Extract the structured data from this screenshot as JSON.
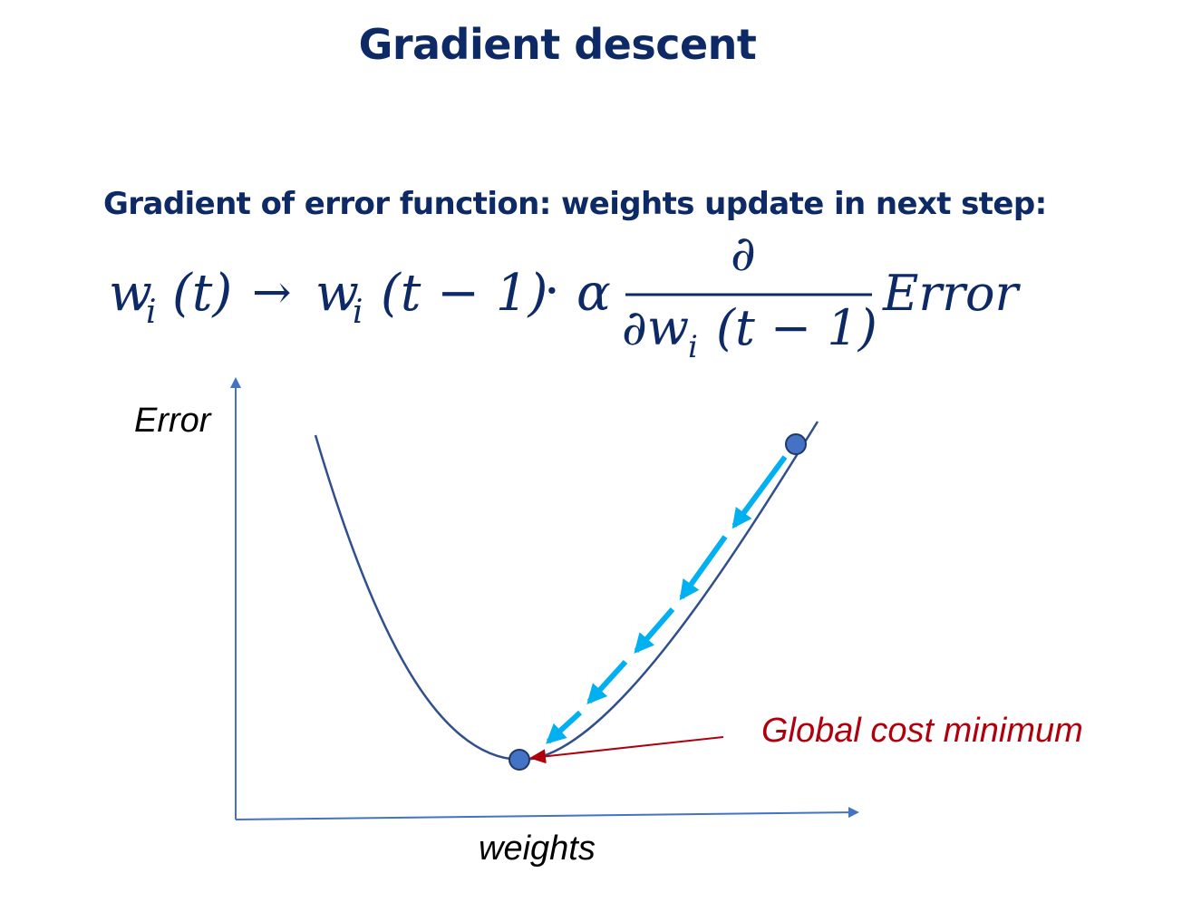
{
  "slide": {
    "title": "Gradient descent",
    "subtitle": "Gradient of error function: weights update in next step:"
  },
  "formula": {
    "lhs_var": "w",
    "lhs_sub": "i",
    "lhs_arg": "(t)",
    "arrow": "→",
    "rhs_var": "w",
    "rhs_sub": "i",
    "rhs_arg": "(t − 1)",
    "dot": "·",
    "alpha": "α",
    "numerator": "∂",
    "denominator_partial": "∂w",
    "denominator_sub": "i",
    "denominator_arg": "(t − 1)",
    "function_name": "Error"
  },
  "diagram": {
    "y_axis_label": "Error",
    "x_axis_label": "weights",
    "annotation": "Global cost minimum",
    "colors": {
      "axis": "#4472c4",
      "curve": "#2f4f8f",
      "steps": "#00b0f0",
      "point_fill": "#4472c4",
      "point_stroke": "#1f3864",
      "annotation": "#b0000d"
    }
  }
}
